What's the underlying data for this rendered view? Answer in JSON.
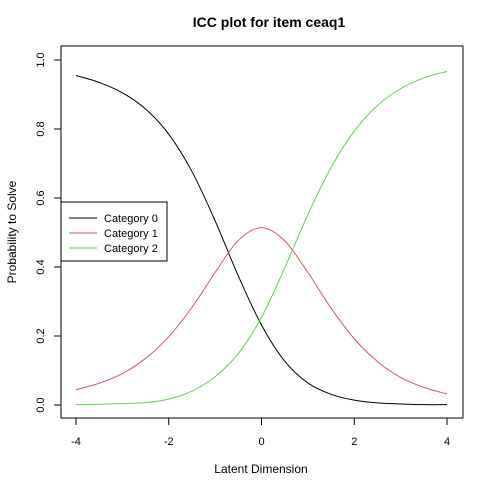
{
  "chart_data": {
    "type": "line",
    "title": "ICC plot for item ceaq1",
    "xlabel": "Latent Dimension",
    "ylabel": "Probability to Solve",
    "xlim": [
      -4,
      4
    ],
    "ylim": [
      0,
      1
    ],
    "xticks": [
      "-4",
      "-2",
      "0",
      "2",
      "4"
    ],
    "yticks": [
      "0.0",
      "0.2",
      "0.4",
      "0.6",
      "0.8",
      "1.0"
    ],
    "grid": false,
    "legend_position": "left",
    "x": [
      -4,
      -3.5,
      -3,
      -2.5,
      -2,
      -1.5,
      -1,
      -0.5,
      0,
      0.5,
      1,
      1.5,
      2,
      2.5,
      3,
      3.5,
      4
    ],
    "series": [
      {
        "name": "Category 0",
        "color": "#000000",
        "values": [
          0.955,
          0.935,
          0.905,
          0.858,
          0.785,
          0.677,
          0.534,
          0.374,
          0.232,
          0.127,
          0.064,
          0.031,
          0.014,
          0.006,
          0.003,
          0.001,
          0.001
        ]
      },
      {
        "name": "Category 1",
        "color": "#DF536B",
        "values": [
          0.044,
          0.063,
          0.091,
          0.135,
          0.198,
          0.283,
          0.384,
          0.477,
          0.514,
          0.476,
          0.384,
          0.281,
          0.192,
          0.126,
          0.08,
          0.051,
          0.032
        ]
      },
      {
        "name": "Category 2",
        "color": "#61D04F",
        "values": [
          0.001,
          0.002,
          0.004,
          0.007,
          0.017,
          0.04,
          0.082,
          0.149,
          0.254,
          0.397,
          0.552,
          0.688,
          0.794,
          0.868,
          0.917,
          0.948,
          0.967
        ]
      }
    ]
  }
}
